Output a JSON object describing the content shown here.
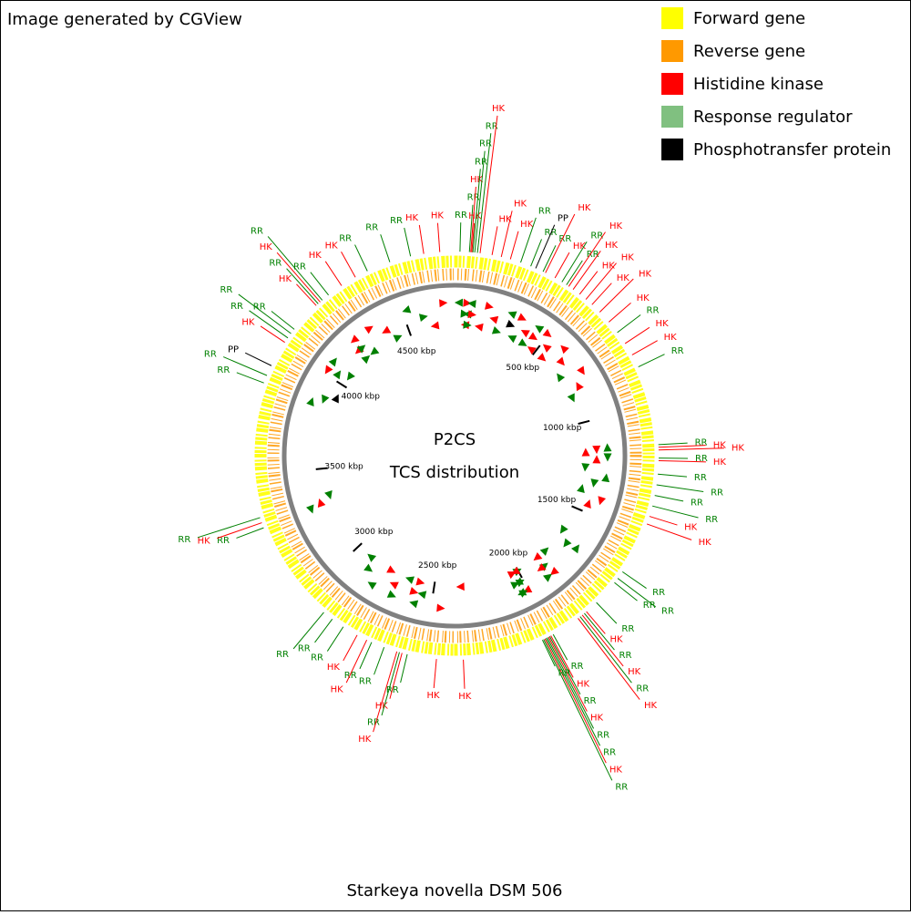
{
  "chart_data": {
    "type": "circular-genome-map",
    "title": "Image generated by CGView",
    "center_title": "P2CS",
    "center_subtitle": "TCS distribution",
    "footer": "Starkeya novella DSM 506",
    "legend": [
      {
        "name": "Forward gene",
        "color": "#ffff00"
      },
      {
        "name": "Reverse gene",
        "color": "#ff9900"
      },
      {
        "name": "Histidine kinase",
        "color": "#ff0000"
      },
      {
        "name": "Response regulator",
        "color": "#80c080"
      },
      {
        "name": "Phosphotransfer protein",
        "color": "#000000"
      }
    ],
    "xlim": [
      0,
      4765
    ],
    "xticks": [
      {
        "value": 500,
        "label": "500 kbp"
      },
      {
        "value": 1000,
        "label": "1000 kbp"
      },
      {
        "value": 1500,
        "label": "1500 kbp"
      },
      {
        "value": 2000,
        "label": "2000 kbp"
      },
      {
        "value": 2500,
        "label": "2500 kbp"
      },
      {
        "value": 3000,
        "label": "3000 kbp"
      },
      {
        "value": 3500,
        "label": "3500 kbp"
      },
      {
        "value": 4000,
        "label": "4000 kbp"
      },
      {
        "value": 4500,
        "label": "4500 kbp"
      }
    ],
    "features": [
      {
        "label": "RR",
        "position": 20,
        "color": "#008000"
      },
      {
        "label": "RR",
        "position": 55,
        "color": "#008000"
      },
      {
        "label": "HK",
        "position": 60,
        "color": "#ff0000"
      },
      {
        "label": "HK",
        "position": 64,
        "color": "#ff0000"
      },
      {
        "label": "RR",
        "position": 68,
        "color": "#008000"
      },
      {
        "label": "RR",
        "position": 75,
        "color": "#008000"
      },
      {
        "label": "RR",
        "position": 85,
        "color": "#008000"
      },
      {
        "label": "HK",
        "position": 95,
        "color": "#ff0000"
      },
      {
        "label": "HK",
        "position": 140,
        "color": "#ff0000"
      },
      {
        "label": "HK",
        "position": 175,
        "color": "#ff0000"
      },
      {
        "label": "HK",
        "position": 210,
        "color": "#ff0000"
      },
      {
        "label": "RR",
        "position": 250,
        "color": "#008000"
      },
      {
        "label": "RR",
        "position": 290,
        "color": "#008000"
      },
      {
        "label": "PP",
        "position": 310,
        "color": "#000000"
      },
      {
        "label": "RR",
        "position": 340,
        "color": "#008000"
      },
      {
        "label": "HK",
        "position": 350,
        "color": "#ff0000"
      },
      {
        "label": "HK",
        "position": 390,
        "color": "#ff0000"
      },
      {
        "label": "RR",
        "position": 420,
        "color": "#008000"
      },
      {
        "label": "RR",
        "position": 440,
        "color": "#008000"
      },
      {
        "label": "HK",
        "position": 450,
        "color": "#ff0000"
      },
      {
        "label": "HK",
        "position": 470,
        "color": "#ff0000"
      },
      {
        "label": "HK",
        "position": 500,
        "color": "#ff0000"
      },
      {
        "label": "HK",
        "position": 530,
        "color": "#ff0000"
      },
      {
        "label": "HK",
        "position": 560,
        "color": "#ff0000"
      },
      {
        "label": "HK",
        "position": 600,
        "color": "#ff0000"
      },
      {
        "label": "HK",
        "position": 650,
        "color": "#ff0000"
      },
      {
        "label": "RR",
        "position": 700,
        "color": "#008000"
      },
      {
        "label": "HK",
        "position": 750,
        "color": "#ff0000"
      },
      {
        "label": "HK",
        "position": 800,
        "color": "#ff0000"
      },
      {
        "label": "RR",
        "position": 850,
        "color": "#008000"
      },
      {
        "label": "RR",
        "position": 1150,
        "color": "#008000"
      },
      {
        "label": "HK",
        "position": 1160,
        "color": "#ff0000"
      },
      {
        "label": "HK",
        "position": 1170,
        "color": "#ff0000"
      },
      {
        "label": "RR",
        "position": 1200,
        "color": "#008000"
      },
      {
        "label": "HK",
        "position": 1210,
        "color": "#ff0000"
      },
      {
        "label": "RR",
        "position": 1260,
        "color": "#008000"
      },
      {
        "label": "RR",
        "position": 1300,
        "color": "#008000"
      },
      {
        "label": "RR",
        "position": 1340,
        "color": "#008000"
      },
      {
        "label": "RR",
        "position": 1380,
        "color": "#008000"
      },
      {
        "label": "HK",
        "position": 1420,
        "color": "#ff0000"
      },
      {
        "label": "HK",
        "position": 1450,
        "color": "#ff0000"
      },
      {
        "label": "RR",
        "position": 1650,
        "color": "#008000"
      },
      {
        "label": "RR",
        "position": 1680,
        "color": "#008000"
      },
      {
        "label": "RR",
        "position": 1700,
        "color": "#008000"
      },
      {
        "label": "RR",
        "position": 1800,
        "color": "#008000"
      },
      {
        "label": "HK",
        "position": 1850,
        "color": "#ff0000"
      },
      {
        "label": "RR",
        "position": 1860,
        "color": "#008000"
      },
      {
        "label": "HK",
        "position": 1870,
        "color": "#ff0000"
      },
      {
        "label": "RR",
        "position": 1880,
        "color": "#008000"
      },
      {
        "label": "HK",
        "position": 1890,
        "color": "#ff0000"
      },
      {
        "label": "RR",
        "position": 2000,
        "color": "#008000"
      },
      {
        "label": "HK",
        "position": 2010,
        "color": "#ff0000"
      },
      {
        "label": "RR",
        "position": 2015,
        "color": "#008000"
      },
      {
        "label": "HK",
        "position": 2020,
        "color": "#ff0000"
      },
      {
        "label": "RR",
        "position": 2025,
        "color": "#008000"
      },
      {
        "label": "RR",
        "position": 2030,
        "color": "#008000"
      },
      {
        "label": "HK",
        "position": 2035,
        "color": "#ff0000"
      },
      {
        "label": "RR",
        "position": 2040,
        "color": "#008000"
      },
      {
        "label": "RR",
        "position": 2045,
        "color": "#008000"
      },
      {
        "label": "HK",
        "position": 2350,
        "color": "#ff0000"
      },
      {
        "label": "HK",
        "position": 2450,
        "color": "#ff0000"
      },
      {
        "label": "RR",
        "position": 2560,
        "color": "#008000"
      },
      {
        "label": "HK",
        "position": 2580,
        "color": "#ff0000"
      },
      {
        "label": "RR",
        "position": 2590,
        "color": "#008000"
      },
      {
        "label": "HK",
        "position": 2600,
        "color": "#ff0000"
      },
      {
        "label": "RR",
        "position": 2650,
        "color": "#008000"
      },
      {
        "label": "RR",
        "position": 2700,
        "color": "#008000"
      },
      {
        "label": "HK",
        "position": 2720,
        "color": "#ff0000"
      },
      {
        "label": "HK",
        "position": 2760,
        "color": "#ff0000"
      },
      {
        "label": "RR",
        "position": 2820,
        "color": "#008000"
      },
      {
        "label": "RR",
        "position": 2870,
        "color": "#008000"
      },
      {
        "label": "RR",
        "position": 2910,
        "color": "#008000"
      },
      {
        "label": "RR",
        "position": 3300,
        "color": "#008000"
      },
      {
        "label": "HK",
        "position": 3320,
        "color": "#ff0000"
      },
      {
        "label": "RR",
        "position": 3340,
        "color": "#008000"
      },
      {
        "label": "RR",
        "position": 3850,
        "color": "#008000"
      },
      {
        "label": "RR",
        "position": 3880,
        "color": "#008000"
      },
      {
        "label": "PP",
        "position": 3920,
        "color": "#000000"
      },
      {
        "label": "HK",
        "position": 4020,
        "color": "#ff0000"
      },
      {
        "label": "RR",
        "position": 4040,
        "color": "#008000"
      },
      {
        "label": "RR",
        "position": 4060,
        "color": "#008000"
      },
      {
        "label": "RR",
        "position": 4080,
        "color": "#008000"
      },
      {
        "label": "HK",
        "position": 4200,
        "color": "#ff0000"
      },
      {
        "label": "RR",
        "position": 4210,
        "color": "#008000"
      },
      {
        "label": "HK",
        "position": 4220,
        "color": "#ff0000"
      },
      {
        "label": "RR",
        "position": 4230,
        "color": "#008000"
      },
      {
        "label": "RR",
        "position": 4260,
        "color": "#008000"
      },
      {
        "label": "HK",
        "position": 4320,
        "color": "#ff0000"
      },
      {
        "label": "HK",
        "position": 4380,
        "color": "#ff0000"
      },
      {
        "label": "RR",
        "position": 4430,
        "color": "#008000"
      },
      {
        "label": "RR",
        "position": 4520,
        "color": "#008000"
      },
      {
        "label": "RR",
        "position": 4600,
        "color": "#008000"
      },
      {
        "label": "HK",
        "position": 4650,
        "color": "#ff0000"
      },
      {
        "label": "HK",
        "position": 4710,
        "color": "#ff0000"
      }
    ]
  }
}
